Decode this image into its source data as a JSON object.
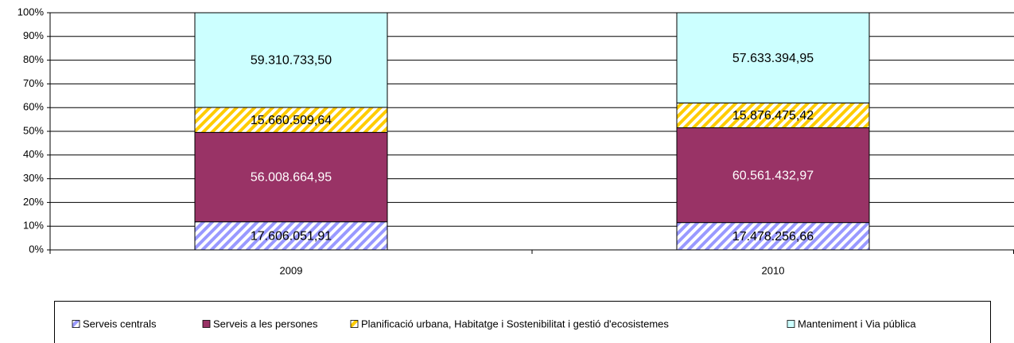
{
  "chart_data": {
    "type": "bar",
    "stacked": true,
    "normalize": true,
    "categories": [
      "2009",
      "2010"
    ],
    "series": [
      {
        "name": "Serveis centrals",
        "color": "#9999ff",
        "hatch": true,
        "label_color": "#000000",
        "values": [
          17606051.91,
          17478256.66
        ],
        "value_labels": [
          "17.606.051,91",
          "17.478.256,66"
        ]
      },
      {
        "name": "Serveis a les persones",
        "color": "#993366",
        "hatch": false,
        "label_color": "#ffffff",
        "values": [
          56008664.95,
          60561432.97
        ],
        "value_labels": [
          "56.008.664,95",
          "60.561.432,97"
        ]
      },
      {
        "name": "Planificació urbana, Habitatge i Sostenibilitat i gestió d'ecosistemes",
        "color": "#ffcc00",
        "hatch": true,
        "label_color": "#000000",
        "values": [
          15660509.64,
          15876475.42
        ],
        "value_labels": [
          "15.660.509,64",
          "15.876.475,42"
        ]
      },
      {
        "name": "Manteniment i Via pública",
        "color": "#ccffff",
        "hatch": false,
        "label_color": "#000000",
        "values": [
          59310733.5,
          57633394.95
        ],
        "value_labels": [
          "59.310.733,50",
          "57.633.394,95"
        ]
      }
    ],
    "ylim": [
      0,
      100
    ],
    "yticks": [
      {
        "value": 0,
        "label": "0%"
      },
      {
        "value": 10,
        "label": "10%"
      },
      {
        "value": 20,
        "label": "20%"
      },
      {
        "value": 30,
        "label": "30%"
      },
      {
        "value": 40,
        "label": "40%"
      },
      {
        "value": 50,
        "label": "50%"
      },
      {
        "value": 60,
        "label": "60%"
      },
      {
        "value": 70,
        "label": "70%"
      },
      {
        "value": 80,
        "label": "80%"
      },
      {
        "value": 90,
        "label": "90%"
      },
      {
        "value": 100,
        "label": "100%"
      }
    ],
    "grid": true,
    "legend": "bottom"
  }
}
